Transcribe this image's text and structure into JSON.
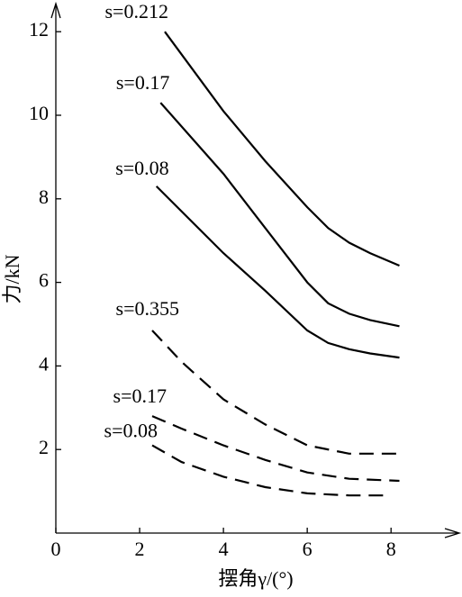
{
  "chart_data": {
    "type": "line",
    "xlabel": "摆角γ/(°)",
    "ylabel": "力/kN",
    "xlim": [
      0,
      9.5
    ],
    "ylim": [
      0,
      12.5
    ],
    "xticks": [
      0,
      2,
      4,
      6,
      8
    ],
    "yticks": [
      2,
      4,
      6,
      8,
      10,
      12
    ],
    "series": [
      {
        "name": "s=0.212",
        "color": "#000000",
        "linestyle": "solid",
        "x": [
          2.6,
          4,
          5,
          6,
          6.5,
          7,
          7.5,
          8.2
        ],
        "values": [
          12.0,
          10.1,
          8.9,
          7.8,
          7.3,
          6.95,
          6.7,
          6.4
        ]
      },
      {
        "name": "s=0.17",
        "color": "#000000",
        "linestyle": "solid",
        "x": [
          2.5,
          4,
          5,
          6,
          6.5,
          7,
          7.5,
          8.2
        ],
        "values": [
          10.3,
          8.6,
          7.3,
          6.0,
          5.5,
          5.25,
          5.1,
          4.95
        ]
      },
      {
        "name": "s=0.08",
        "color": "#000000",
        "linestyle": "solid",
        "x": [
          2.4,
          4,
          5,
          6,
          6.5,
          7,
          7.5,
          8.2
        ],
        "values": [
          8.3,
          6.7,
          5.8,
          4.85,
          4.55,
          4.4,
          4.3,
          4.2
        ]
      },
      {
        "name": "s=0.355",
        "color": "#000000",
        "linestyle": "dashed",
        "x": [
          2.3,
          3,
          4,
          5,
          6,
          7,
          8.2
        ],
        "values": [
          4.85,
          4.1,
          3.2,
          2.6,
          2.1,
          1.9,
          1.9
        ]
      },
      {
        "name": "s=0.17",
        "color": "#000000",
        "linestyle": "dashed",
        "x": [
          2.3,
          3,
          4,
          5,
          6,
          7,
          8.2
        ],
        "values": [
          2.8,
          2.5,
          2.1,
          1.75,
          1.45,
          1.3,
          1.25
        ]
      },
      {
        "name": "s=0.08",
        "color": "#000000",
        "linestyle": "dashed",
        "x": [
          2.3,
          3,
          4,
          5,
          6,
          7,
          8
        ],
        "values": [
          2.1,
          1.7,
          1.35,
          1.1,
          0.95,
          0.9,
          0.9
        ]
      }
    ]
  }
}
